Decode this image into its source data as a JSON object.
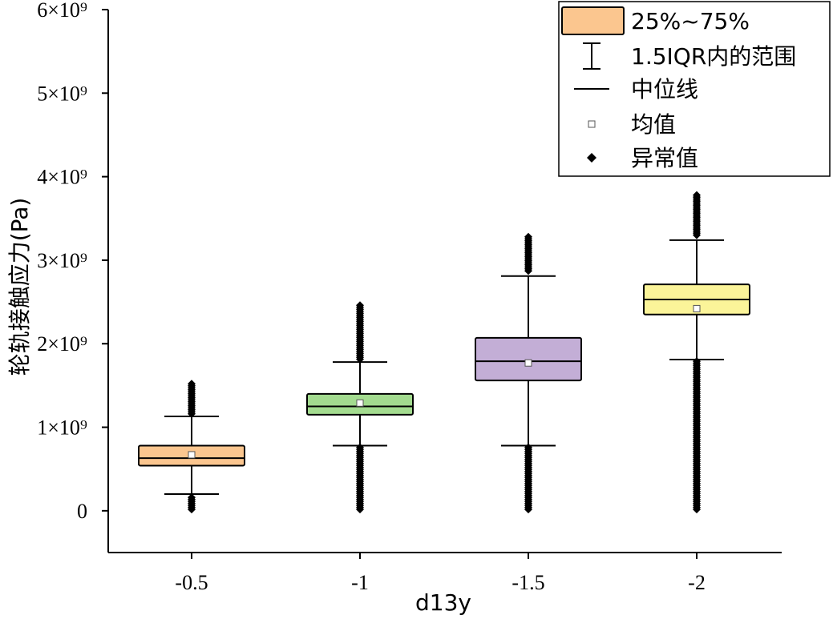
{
  "chart_data": {
    "type": "box",
    "xlabel": "d13y",
    "ylabel": "轮轨接触应力(Pa)",
    "categories": [
      "-0.5",
      "-1",
      "-1.5",
      "-2"
    ],
    "ylim": [
      -500000000.0,
      6000000000.0
    ],
    "yticks": [
      {
        "value": 0,
        "label": "0"
      },
      {
        "value": 1000000000.0,
        "label": "1×10⁹"
      },
      {
        "value": 2000000000.0,
        "label": "2×10⁹"
      },
      {
        "value": 3000000000.0,
        "label": "3×10⁹"
      },
      {
        "value": 4000000000.0,
        "label": "4×10⁹"
      },
      {
        "value": 5000000000.0,
        "label": "5×10⁹"
      },
      {
        "value": 6000000000.0,
        "label": "6×10⁹"
      }
    ],
    "boxes": [
      {
        "category": "-0.5",
        "q1": 540000000.0,
        "median": 630000000.0,
        "q3": 780000000.0,
        "mean": 670000000.0,
        "whisker_low": 200000000.0,
        "whisker_high": 1130000000.0,
        "outliers_low": [
          0.0,
          160000000.0
        ],
        "outliers_high": [
          1160000000.0,
          1520000000.0
        ],
        "color": "#fbc68f"
      },
      {
        "category": "-1",
        "q1": 1150000000.0,
        "median": 1250000000.0,
        "q3": 1400000000.0,
        "mean": 1290000000.0,
        "whisker_low": 780000000.0,
        "whisker_high": 1780000000.0,
        "outliers_low": [
          0.0,
          760000000.0
        ],
        "outliers_high": [
          1800000000.0,
          2460000000.0
        ],
        "color": "#a3db8f"
      },
      {
        "category": "-1.5",
        "q1": 1560000000.0,
        "median": 1790000000.0,
        "q3": 2070000000.0,
        "mean": 1770000000.0,
        "whisker_low": 780000000.0,
        "whisker_high": 2810000000.0,
        "outliers_low": [
          0.0,
          760000000.0
        ],
        "outliers_high": [
          2850000000.0,
          3280000000.0
        ],
        "color": "#c3aed6"
      },
      {
        "category": "-2",
        "q1": 2350000000.0,
        "median": 2530000000.0,
        "q3": 2710000000.0,
        "mean": 2420000000.0,
        "whisker_low": 1810000000.0,
        "whisker_high": 3240000000.0,
        "outliers_low": [
          0.0,
          1790000000.0
        ],
        "outliers_high": [
          3280000000.0,
          3780000000.0
        ],
        "color": "#fbf499"
      }
    ],
    "legend": {
      "placement": "top-right",
      "items": [
        {
          "label": "25%~75%",
          "symbol": "box",
          "color": "#fbc68f"
        },
        {
          "label": "1.5IQR内的范围",
          "symbol": "whisker"
        },
        {
          "label": "中位线",
          "symbol": "line"
        },
        {
          "label": "均值",
          "symbol": "square"
        },
        {
          "label": "异常值",
          "symbol": "diamond"
        }
      ]
    },
    "grid": false
  }
}
